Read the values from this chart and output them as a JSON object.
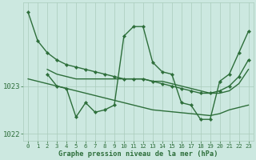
{
  "xlabel": "Graphe pression niveau de la mer (hPa)",
  "background_color": "#cce8e0",
  "grid_color": "#aaccbb",
  "line_color": "#2d6e3a",
  "ylim": [
    1021.85,
    1024.75
  ],
  "xlim": [
    -0.5,
    23.5
  ],
  "yticks": [
    1022,
    1023
  ],
  "xticks": [
    0,
    1,
    2,
    3,
    4,
    5,
    6,
    7,
    8,
    9,
    10,
    11,
    12,
    13,
    14,
    15,
    16,
    17,
    18,
    19,
    20,
    21,
    22,
    23
  ],
  "series": [
    {
      "x": [
        0,
        1,
        2,
        3,
        4,
        5,
        6,
        7,
        8,
        9,
        10,
        11,
        12,
        13,
        14,
        15,
        16,
        17,
        18,
        19,
        20,
        21,
        22,
        23
      ],
      "y": [
        1024.55,
        1023.95,
        1023.7,
        1023.55,
        1023.45,
        1023.4,
        1023.35,
        1023.3,
        1023.25,
        1023.2,
        1023.15,
        1023.15,
        1023.15,
        1023.1,
        1023.05,
        1023.0,
        1022.95,
        1022.9,
        1022.85,
        1022.85,
        1022.9,
        1023.0,
        1023.2,
        1023.55
      ],
      "marker": "D",
      "markersize": 2.2,
      "linewidth": 1.0,
      "has_markers": true
    },
    {
      "x": [
        2,
        3,
        4,
        5,
        6,
        7,
        8,
        9,
        10,
        11,
        12,
        13,
        14,
        15,
        16,
        17,
        18,
        19,
        20,
        21,
        22,
        23
      ],
      "y": [
        1023.35,
        1023.25,
        1023.2,
        1023.15,
        1023.15,
        1023.15,
        1023.15,
        1023.15,
        1023.15,
        1023.15,
        1023.15,
        1023.1,
        1023.1,
        1023.05,
        1023.0,
        1022.95,
        1022.9,
        1022.85,
        1022.85,
        1022.9,
        1023.05,
        1023.35
      ],
      "marker": "D",
      "markersize": 0,
      "linewidth": 1.0,
      "has_markers": false
    },
    {
      "x": [
        2,
        3,
        4,
        5,
        6,
        7,
        8,
        9,
        10,
        11,
        12,
        13,
        14,
        15,
        16,
        17,
        18,
        19,
        20,
        21,
        22,
        23
      ],
      "y": [
        1023.25,
        1023.0,
        1022.95,
        1022.35,
        1022.65,
        1022.45,
        1022.5,
        1022.6,
        1024.05,
        1024.25,
        1024.25,
        1023.5,
        1023.3,
        1023.25,
        1022.65,
        1022.6,
        1022.3,
        1022.3,
        1023.1,
        1023.25,
        1023.7,
        1024.15
      ],
      "marker": "D",
      "markersize": 2.2,
      "linewidth": 1.0,
      "has_markers": true
    },
    {
      "x": [
        0,
        1,
        2,
        3,
        4,
        5,
        6,
        7,
        8,
        9,
        10,
        11,
        12,
        13,
        14,
        15,
        16,
        17,
        18,
        19,
        20,
        21,
        22,
        23
      ],
      "y": [
        1023.15,
        1023.1,
        1023.05,
        1023.0,
        1022.95,
        1022.9,
        1022.85,
        1022.8,
        1022.75,
        1022.7,
        1022.65,
        1022.6,
        1022.55,
        1022.5,
        1022.48,
        1022.46,
        1022.44,
        1022.42,
        1022.4,
        1022.38,
        1022.42,
        1022.5,
        1022.55,
        1022.6
      ],
      "marker": "D",
      "markersize": 0,
      "linewidth": 1.0,
      "has_markers": false
    }
  ]
}
